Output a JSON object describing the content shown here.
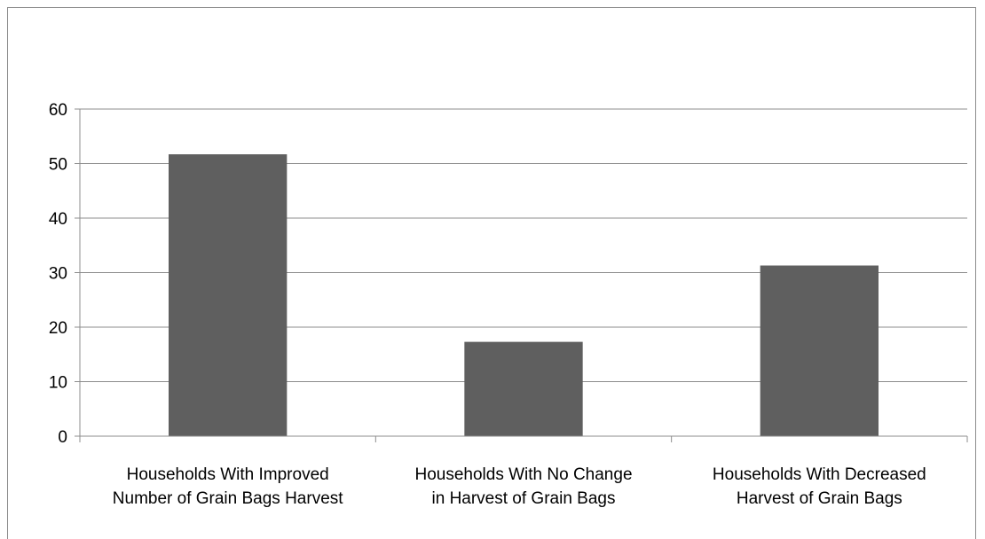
{
  "chart_data": {
    "type": "bar",
    "title": "",
    "xlabel": "",
    "ylabel": "",
    "categories": [
      [
        "Households With Improved",
        "Number of Grain Bags Harvest"
      ],
      [
        "Households With No Change",
        "in Harvest of Grain Bags"
      ],
      [
        "Households With Decreased",
        "Harvest of Grain Bags"
      ]
    ],
    "values": [
      51.7,
      17.3,
      31.3
    ],
    "ylim": [
      0,
      60
    ],
    "yticks": [
      0,
      10,
      20,
      30,
      40,
      50,
      60
    ],
    "grid": true,
    "legend": "none",
    "bar_color": "#5f5f5f",
    "grid_color": "#8c8c8c"
  }
}
